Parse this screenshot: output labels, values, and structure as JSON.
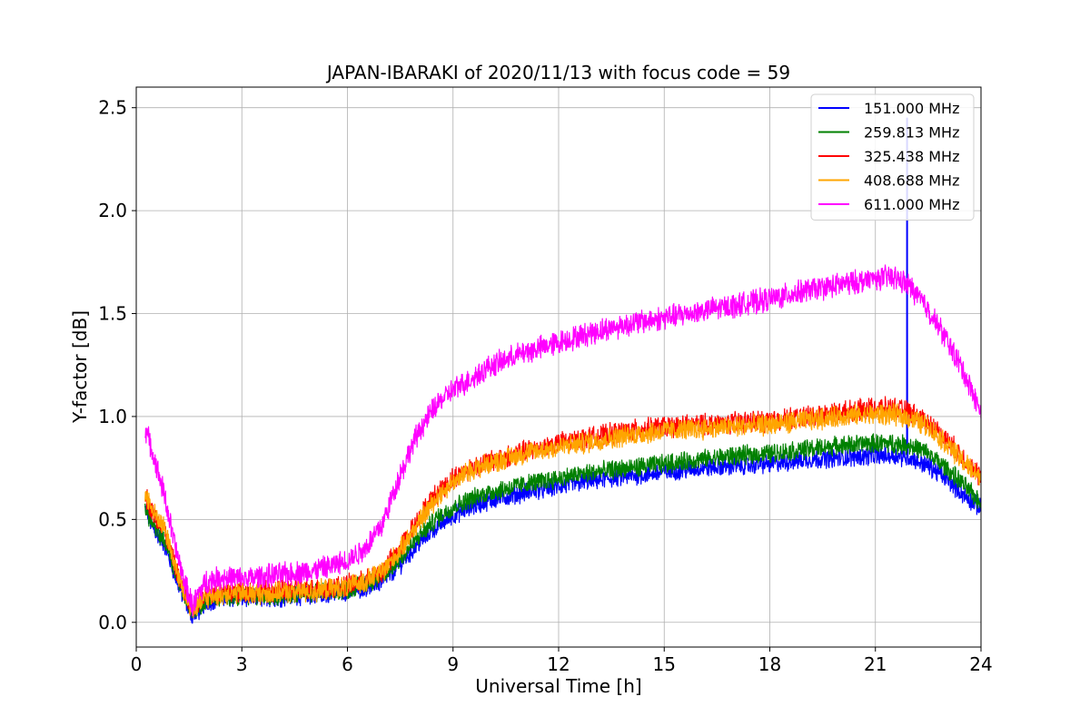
{
  "chart_data": {
    "type": "line",
    "title": "JAPAN-IBARAKI of 2020/11/13 with focus code = 59",
    "xlabel": "Universal Time [h]",
    "ylabel": "Y-factor [dB]",
    "xlim": [
      0,
      24
    ],
    "ylim": [
      -0.12,
      2.6
    ],
    "xticks": [
      0,
      3,
      6,
      9,
      12,
      15,
      18,
      21,
      24
    ],
    "yticks": [
      0.0,
      0.5,
      1.0,
      1.5,
      2.0,
      2.5
    ],
    "xtick_labels": [
      "0",
      "3",
      "6",
      "9",
      "12",
      "15",
      "18",
      "21",
      "24"
    ],
    "ytick_labels": [
      "0.0",
      "0.5",
      "1.0",
      "1.5",
      "2.0",
      "2.5"
    ],
    "grid": true,
    "legend_position": "top-right",
    "x": [
      0.25,
      0.5,
      0.8,
      1.0,
      1.2,
      1.4,
      1.6,
      1.8,
      2.0,
      2.5,
      3.0,
      3.5,
      4.0,
      4.5,
      5.0,
      5.5,
      6.0,
      6.5,
      7.0,
      7.5,
      8.0,
      8.5,
      9.0,
      9.5,
      10.0,
      11.0,
      12.0,
      13.0,
      14.0,
      15.0,
      16.0,
      17.0,
      18.0,
      19.0,
      20.0,
      21.0,
      21.5,
      22.0,
      22.5,
      23.0,
      23.5,
      24.0
    ],
    "series": [
      {
        "name": "151.000 MHz",
        "color": "#0000ff",
        "noise": 0.04,
        "spike": {
          "x": 21.9,
          "y": 2.45
        },
        "values": [
          0.55,
          0.45,
          0.38,
          0.28,
          0.18,
          0.1,
          0.03,
          0.06,
          0.1,
          0.12,
          0.12,
          0.12,
          0.12,
          0.13,
          0.13,
          0.14,
          0.15,
          0.17,
          0.2,
          0.28,
          0.38,
          0.46,
          0.52,
          0.56,
          0.59,
          0.63,
          0.66,
          0.69,
          0.71,
          0.73,
          0.75,
          0.76,
          0.77,
          0.79,
          0.8,
          0.81,
          0.81,
          0.8,
          0.76,
          0.7,
          0.62,
          0.55
        ]
      },
      {
        "name": "259.813 MHz",
        "color": "#008000",
        "noise": 0.04,
        "values": [
          0.56,
          0.46,
          0.4,
          0.3,
          0.2,
          0.12,
          0.05,
          0.08,
          0.11,
          0.13,
          0.13,
          0.13,
          0.13,
          0.14,
          0.14,
          0.15,
          0.16,
          0.19,
          0.22,
          0.31,
          0.41,
          0.5,
          0.56,
          0.6,
          0.63,
          0.67,
          0.7,
          0.73,
          0.75,
          0.77,
          0.79,
          0.81,
          0.82,
          0.84,
          0.86,
          0.87,
          0.87,
          0.86,
          0.82,
          0.75,
          0.67,
          0.58
        ]
      },
      {
        "name": "325.438 MHz",
        "color": "#ff0000",
        "noise": 0.045,
        "values": [
          0.62,
          0.52,
          0.45,
          0.33,
          0.22,
          0.13,
          0.06,
          0.1,
          0.14,
          0.15,
          0.15,
          0.15,
          0.15,
          0.16,
          0.16,
          0.17,
          0.18,
          0.2,
          0.25,
          0.36,
          0.5,
          0.62,
          0.7,
          0.75,
          0.78,
          0.83,
          0.87,
          0.9,
          0.93,
          0.95,
          0.96,
          0.97,
          0.98,
          1.0,
          1.02,
          1.04,
          1.04,
          1.02,
          0.97,
          0.89,
          0.8,
          0.7
        ]
      },
      {
        "name": "408.688 MHz",
        "color": "#ffa500",
        "noise": 0.045,
        "values": [
          0.63,
          0.53,
          0.46,
          0.34,
          0.22,
          0.13,
          0.06,
          0.09,
          0.12,
          0.14,
          0.14,
          0.14,
          0.14,
          0.15,
          0.15,
          0.16,
          0.17,
          0.2,
          0.25,
          0.35,
          0.48,
          0.6,
          0.68,
          0.74,
          0.77,
          0.82,
          0.85,
          0.88,
          0.91,
          0.93,
          0.94,
          0.95,
          0.96,
          0.98,
          1.0,
          1.01,
          1.01,
          0.99,
          0.95,
          0.87,
          0.78,
          0.7
        ]
      },
      {
        "name": "611.000 MHz",
        "color": "#ff00ff",
        "noise": 0.05,
        "values": [
          0.95,
          0.8,
          0.62,
          0.45,
          0.3,
          0.18,
          0.08,
          0.15,
          0.2,
          0.22,
          0.21,
          0.22,
          0.23,
          0.24,
          0.25,
          0.27,
          0.3,
          0.36,
          0.48,
          0.72,
          0.92,
          1.05,
          1.13,
          1.18,
          1.24,
          1.31,
          1.36,
          1.41,
          1.45,
          1.48,
          1.51,
          1.54,
          1.57,
          1.61,
          1.64,
          1.67,
          1.68,
          1.63,
          1.52,
          1.38,
          1.22,
          1.02
        ]
      }
    ]
  }
}
